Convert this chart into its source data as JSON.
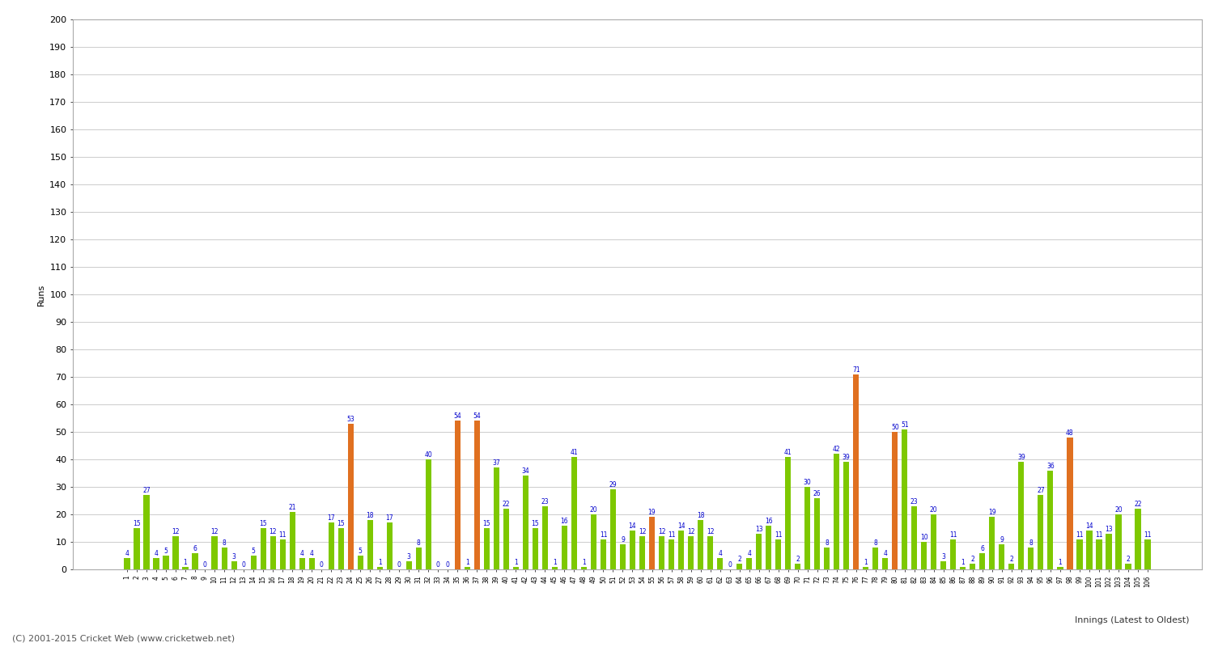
{
  "values": [
    4,
    15,
    27,
    4,
    5,
    12,
    1,
    6,
    0,
    12,
    8,
    3,
    0,
    5,
    15,
    12,
    11,
    21,
    4,
    4,
    0,
    17,
    15,
    53,
    5,
    18,
    1,
    17,
    0,
    3,
    8,
    40,
    0,
    0,
    54,
    1,
    54,
    15,
    37,
    22,
    1,
    34,
    15,
    23,
    1,
    16,
    41,
    1,
    20,
    11,
    29,
    9,
    14,
    12,
    19,
    12,
    11,
    14,
    12,
    18,
    12,
    4,
    0,
    2,
    4,
    13,
    16,
    11,
    41,
    2,
    30,
    26,
    8,
    42,
    39,
    71,
    1,
    8,
    4,
    50,
    51,
    23,
    10,
    20,
    3,
    11,
    1,
    2,
    6,
    19,
    9,
    2,
    39,
    8,
    27,
    36,
    1,
    48,
    11,
    14,
    11,
    13,
    20,
    2,
    22,
    11
  ],
  "colors": [
    "#7ec800",
    "#7ec800",
    "#7ec800",
    "#7ec800",
    "#7ec800",
    "#7ec800",
    "#7ec800",
    "#7ec800",
    "#7ec800",
    "#7ec800",
    "#7ec800",
    "#7ec800",
    "#7ec800",
    "#7ec800",
    "#7ec800",
    "#7ec800",
    "#7ec800",
    "#7ec800",
    "#7ec800",
    "#7ec800",
    "#7ec800",
    "#7ec800",
    "#7ec800",
    "#e07020",
    "#7ec800",
    "#7ec800",
    "#7ec800",
    "#7ec800",
    "#7ec800",
    "#7ec800",
    "#7ec800",
    "#7ec800",
    "#7ec800",
    "#7ec800",
    "#e07020",
    "#7ec800",
    "#e07020",
    "#7ec800",
    "#7ec800",
    "#7ec800",
    "#7ec800",
    "#7ec800",
    "#7ec800",
    "#7ec800",
    "#7ec800",
    "#7ec800",
    "#7ec800",
    "#7ec800",
    "#7ec800",
    "#7ec800",
    "#7ec800",
    "#7ec800",
    "#7ec800",
    "#7ec800",
    "#e07020",
    "#7ec800",
    "#7ec800",
    "#7ec800",
    "#7ec800",
    "#7ec800",
    "#7ec800",
    "#7ec800",
    "#7ec800",
    "#7ec800",
    "#7ec800",
    "#7ec800",
    "#7ec800",
    "#7ec800",
    "#7ec800",
    "#7ec800",
    "#7ec800",
    "#7ec800",
    "#7ec800",
    "#7ec800",
    "#7ec800",
    "#e07020",
    "#7ec800",
    "#7ec800",
    "#7ec800",
    "#e07020",
    "#7ec800",
    "#7ec800",
    "#7ec800",
    "#7ec800",
    "#7ec800",
    "#7ec800",
    "#7ec800",
    "#7ec800",
    "#7ec800",
    "#7ec800",
    "#7ec800",
    "#7ec800",
    "#7ec800",
    "#7ec800",
    "#7ec800",
    "#7ec800",
    "#7ec800",
    "#e07020",
    "#7ec800",
    "#7ec800",
    "#7ec800",
    "#7ec800",
    "#7ec800",
    "#7ec800",
    "#7ec800",
    "#7ec800"
  ],
  "labels": [
    "1",
    "2",
    "3",
    "4",
    "5",
    "6",
    "7",
    "8",
    "9",
    "10",
    "11",
    "12",
    "13",
    "14",
    "15",
    "16",
    "17",
    "18",
    "19",
    "20",
    "21",
    "22",
    "23",
    "24",
    "25",
    "26",
    "27",
    "28",
    "29",
    "30",
    "31",
    "32",
    "33",
    "34",
    "35",
    "36",
    "37",
    "38",
    "39",
    "40",
    "41",
    "42",
    "43",
    "44",
    "45",
    "46",
    "47",
    "48",
    "49",
    "50",
    "51",
    "52",
    "53",
    "54",
    "55",
    "56",
    "57",
    "58",
    "59",
    "60",
    "61",
    "62",
    "63",
    "64",
    "65",
    "66",
    "67",
    "68",
    "69",
    "70",
    "71",
    "72",
    "73",
    "74",
    "75",
    "76",
    "77",
    "78",
    "79",
    "80",
    "81",
    "82",
    "83",
    "84",
    "85",
    "86",
    "87",
    "88",
    "89",
    "90",
    "91",
    "92",
    "93",
    "94",
    "95",
    "96",
    "97",
    "98",
    "99",
    "100",
    "101",
    "102",
    "103",
    "104",
    "105",
    "106"
  ],
  "ylabel": "Runs",
  "ylim": [
    0,
    200
  ],
  "yticks": [
    0,
    10,
    20,
    30,
    40,
    50,
    60,
    70,
    80,
    90,
    100,
    110,
    120,
    130,
    140,
    150,
    160,
    170,
    180,
    190,
    200
  ],
  "xlabel_bottom": "Innings (Latest to Oldest)",
  "footer": "(C) 2001-2015 Cricket Web (www.cricketweb.net)",
  "label_color": "#0000cc",
  "bar_green": "#7ec800",
  "bar_orange": "#e07020",
  "grid_color": "#cccccc",
  "bg_color": "#ffffff",
  "spine_color": "#aaaaaa"
}
